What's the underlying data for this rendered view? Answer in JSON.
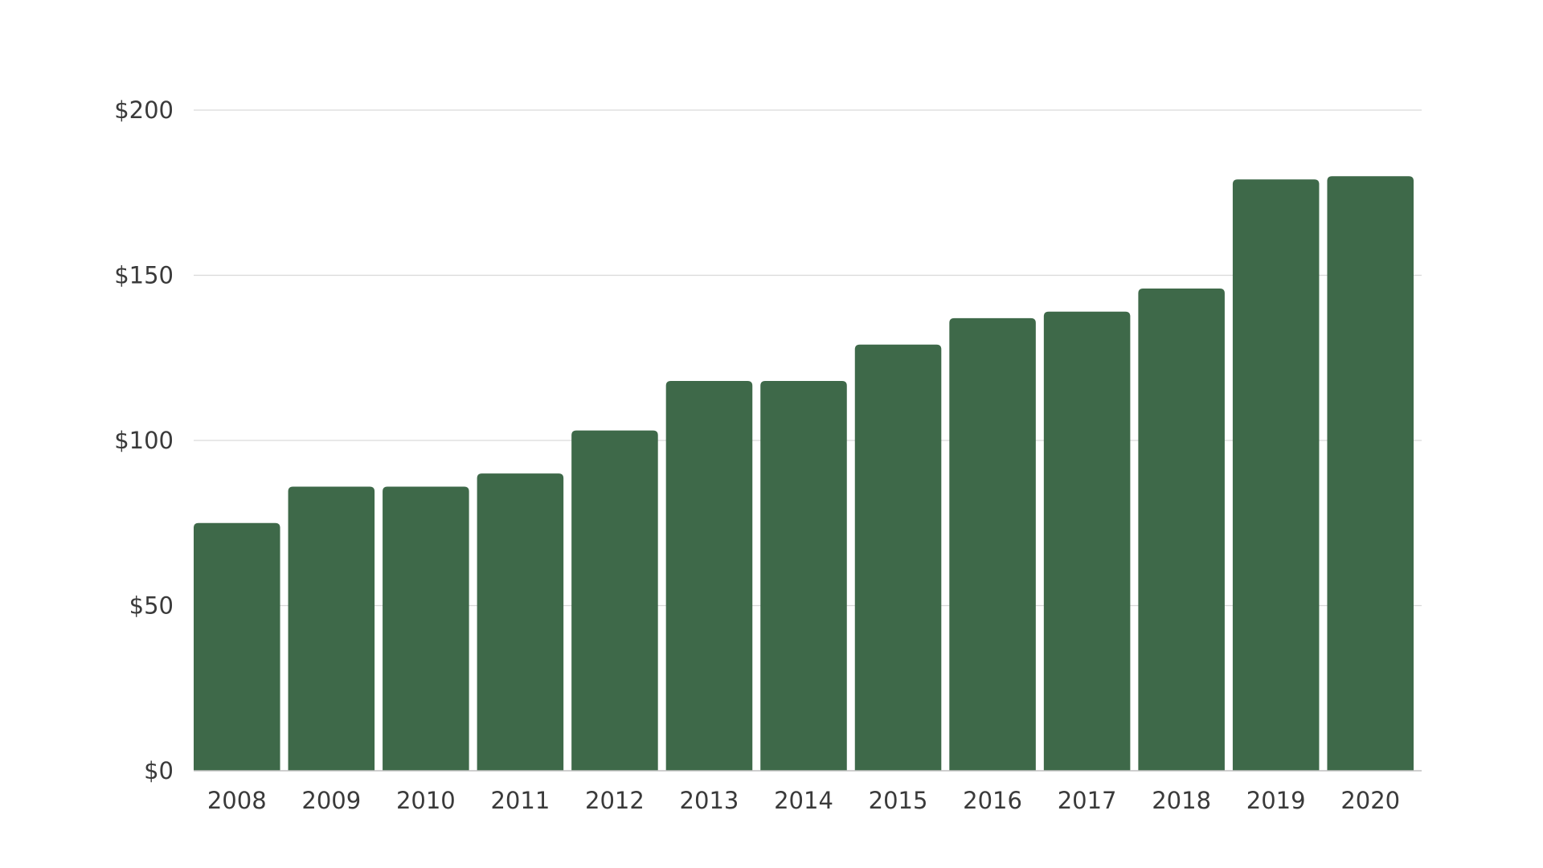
{
  "chart_data": {
    "type": "bar",
    "title": "",
    "xlabel": "",
    "ylabel": "",
    "categories": [
      "2008",
      "2009",
      "2010",
      "2011",
      "2012",
      "2013",
      "2014",
      "2015",
      "2016",
      "2017",
      "2018",
      "2019",
      "2020"
    ],
    "values": [
      75,
      86,
      86,
      90,
      103,
      118,
      118,
      129,
      137,
      139,
      146,
      179,
      180
    ],
    "ylim": [
      0,
      200
    ],
    "yticks": [
      {
        "value": 0,
        "label": "$0"
      },
      {
        "value": 50,
        "label": "$50"
      },
      {
        "value": 100,
        "label": "$100"
      },
      {
        "value": 150,
        "label": "$150"
      },
      {
        "value": 200,
        "label": "$200"
      }
    ],
    "grid": true,
    "legend": "none",
    "bar_color": "#3e6949"
  }
}
